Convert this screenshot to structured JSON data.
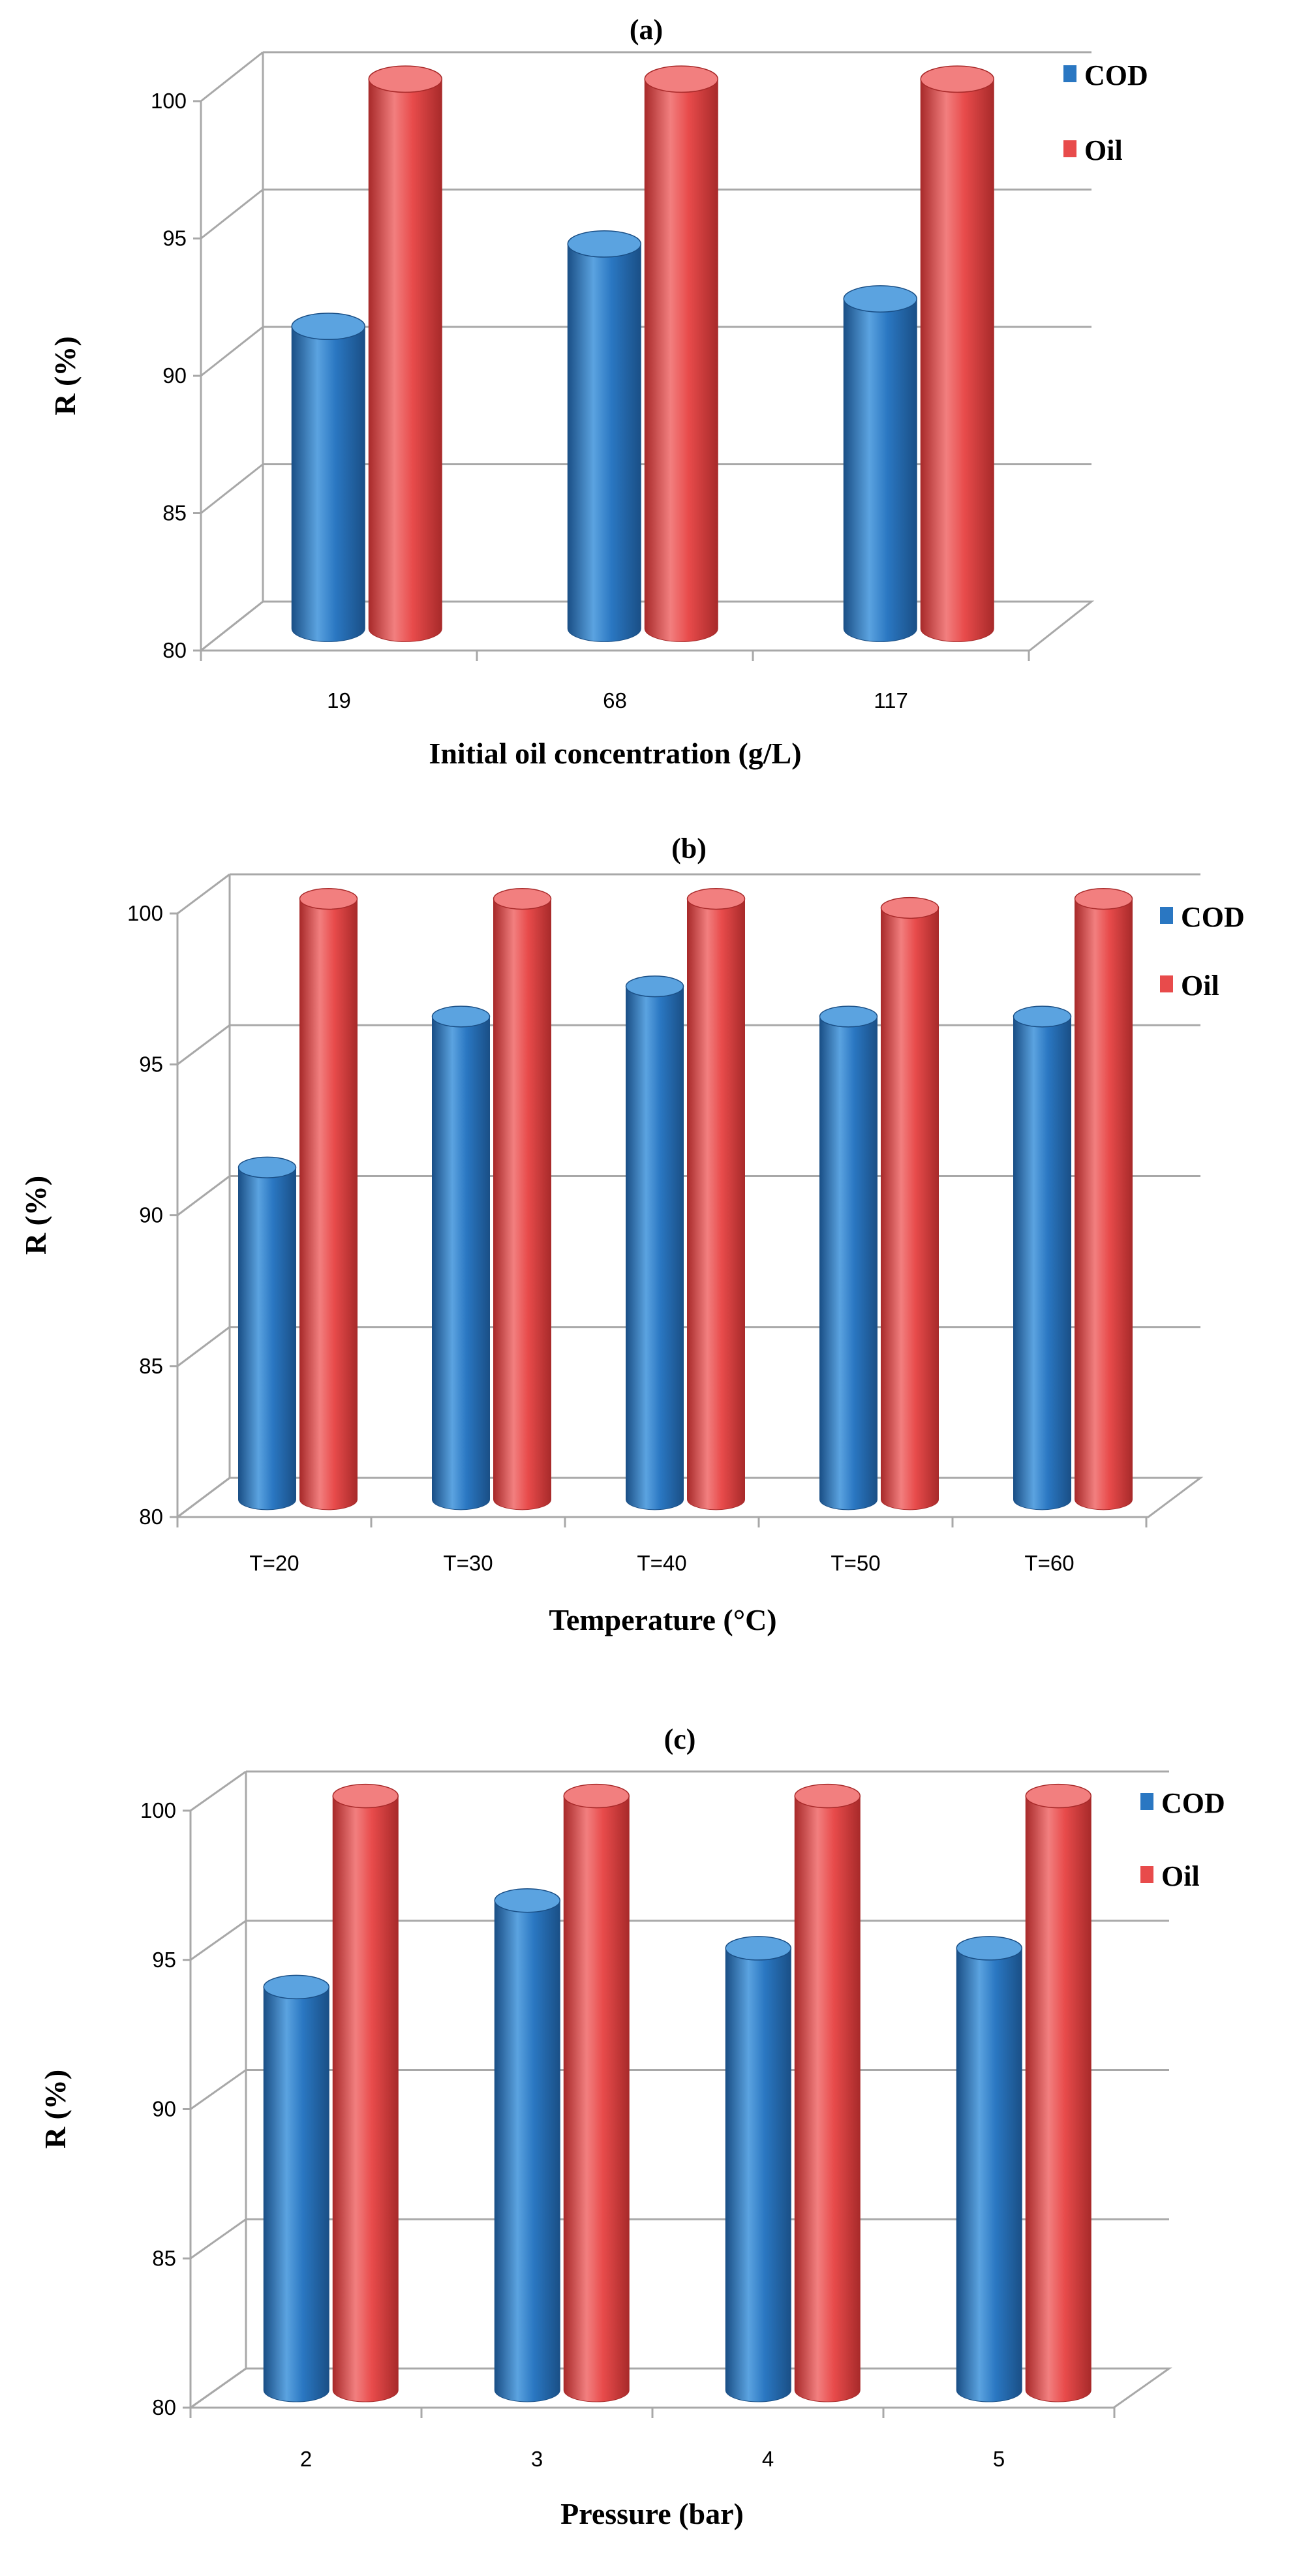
{
  "chart_data": [
    {
      "type": "bar",
      "panel": "(a)",
      "title": "(a)",
      "xlabel": "Initial oil concentration (g/L)",
      "ylabel": "R (%)",
      "categories": [
        "19",
        "68",
        "117"
      ],
      "series": [
        {
          "name": "COD",
          "values": [
            91,
            94,
            92
          ]
        },
        {
          "name": "Oil",
          "values": [
            100,
            100,
            100
          ]
        }
      ],
      "ylim": [
        80,
        100
      ],
      "yticks": [
        "80",
        "85",
        "90",
        "95",
        "100"
      ],
      "grid": true,
      "legend": "top-right"
    },
    {
      "type": "bar",
      "panel": "(b)",
      "title": "(b)",
      "xlabel": "Temperature (°C)",
      "ylabel": "R (%)",
      "categories": [
        "T=20",
        "T=30",
        "T=40",
        "T=50",
        "T=60"
      ],
      "series": [
        {
          "name": "COD",
          "values": [
            91,
            96,
            97,
            96,
            96
          ]
        },
        {
          "name": "Oil",
          "values": [
            99.9,
            99.9,
            99.9,
            99.6,
            99.9
          ]
        }
      ],
      "ylim": [
        80,
        100
      ],
      "yticks": [
        "80",
        "85",
        "90",
        "95",
        "100"
      ],
      "grid": true,
      "legend": "top-right"
    },
    {
      "type": "bar",
      "panel": "(c)",
      "title": "(c)",
      "xlabel": "Pressure (bar)",
      "ylabel": "R (%)",
      "categories": [
        "2",
        "3",
        "4",
        "5"
      ],
      "series": [
        {
          "name": "COD",
          "values": [
            93.5,
            96.4,
            94.8,
            94.8
          ]
        },
        {
          "name": "Oil",
          "values": [
            99.9,
            99.9,
            99.9,
            99.9
          ]
        }
      ],
      "ylim": [
        80,
        100
      ],
      "yticks": [
        "80",
        "85",
        "90",
        "95",
        "100"
      ],
      "grid": true,
      "legend": "top-right"
    }
  ],
  "colors": {
    "COD": "#2a77c2",
    "COD_dark": "#1a4f86",
    "COD_light": "#5ba3e0",
    "Oil": "#e84b4b",
    "Oil_dark": "#a82a2a",
    "Oil_light": "#f27f7f",
    "grid": "#a8a8a8"
  }
}
